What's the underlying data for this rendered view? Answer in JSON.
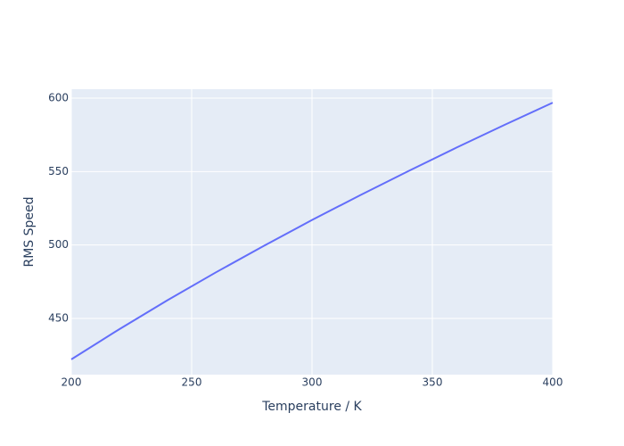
{
  "chart_data": {
    "type": "line",
    "x_label": "Temperature / K",
    "y_label": "RMS Speed",
    "x": [
      200,
      220,
      240,
      260,
      280,
      300,
      320,
      340,
      360,
      380,
      400
    ],
    "series": [
      {
        "color": "#636efa",
        "values": [
          422.1,
          442.7,
          462.4,
          481.3,
          499.4,
          517.0,
          533.9,
          550.3,
          566.3,
          581.8,
          596.9
        ]
      }
    ],
    "xlim": [
      200,
      400
    ],
    "xticks": [
      200,
      250,
      300,
      350,
      400
    ],
    "ylim": [
      411.7,
      606.1
    ],
    "yticks": [
      450,
      500,
      550,
      600
    ],
    "grid": true,
    "background": "#e5ecf6"
  }
}
